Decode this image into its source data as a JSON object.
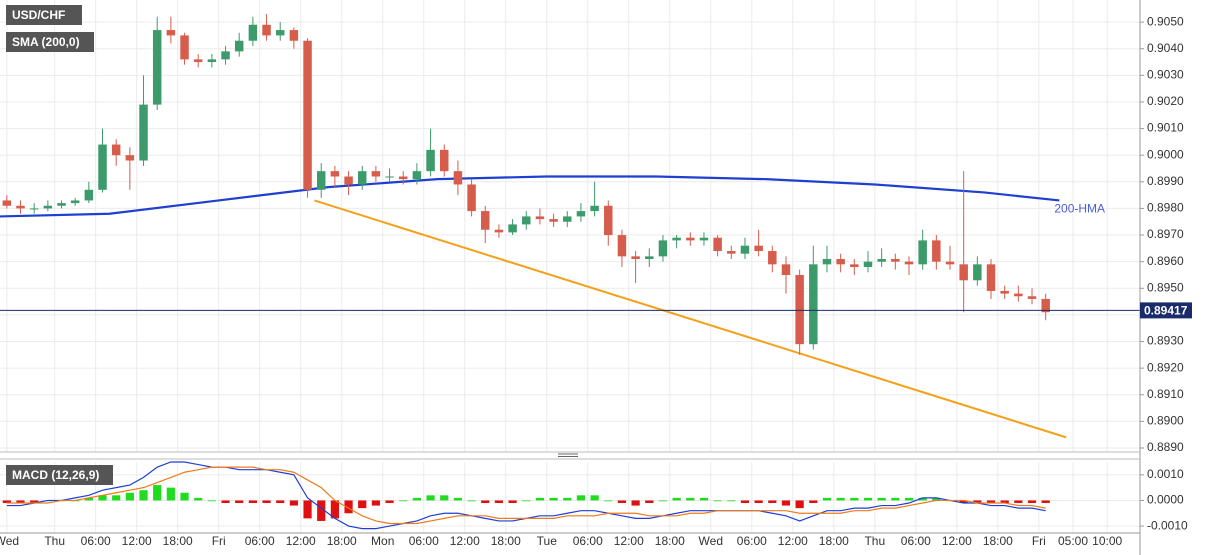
{
  "chart_data": [
    {
      "type": "candlestick",
      "title": "USD/CHF",
      "indicator": "SMA (200,0)",
      "up_color": "#3c9a6b",
      "down_color": "#d65c4c",
      "grid": true,
      "xlim": [
        -8,
        158.8
      ],
      "ylim": [
        0.88885,
        0.90583
      ],
      "yticks": [
        {
          "value": 0.889,
          "label": "0.8890"
        },
        {
          "value": 0.89,
          "label": "0.8900"
        },
        {
          "value": 0.891,
          "label": "0.8910"
        },
        {
          "value": 0.892,
          "label": "0.8920"
        },
        {
          "value": 0.893,
          "label": "0.8930"
        },
        {
          "value": 0.894,
          "label": "0.8940"
        },
        {
          "value": 0.895,
          "label": "0.8950"
        },
        {
          "value": 0.896,
          "label": "0.8960"
        },
        {
          "value": 0.897,
          "label": "0.8970"
        },
        {
          "value": 0.898,
          "label": "0.8980"
        },
        {
          "value": 0.899,
          "label": "0.8990"
        },
        {
          "value": 0.9,
          "label": "0.9000"
        },
        {
          "value": 0.901,
          "label": "0.9010"
        },
        {
          "value": 0.902,
          "label": "0.9020"
        },
        {
          "value": 0.903,
          "label": "0.9030"
        },
        {
          "value": 0.904,
          "label": "0.9040"
        },
        {
          "value": 0.905,
          "label": "0.9050"
        }
      ],
      "x": [
        -7,
        -5,
        -3,
        -1,
        1,
        3,
        5,
        7,
        9,
        11,
        13,
        15,
        17,
        19,
        21,
        23,
        25,
        27,
        29,
        31,
        33,
        35,
        37,
        39,
        41,
        43,
        45,
        47,
        49,
        51,
        53,
        55,
        57,
        59,
        61,
        63,
        65,
        67,
        69,
        71,
        73,
        75,
        77,
        79,
        81,
        83,
        85,
        87,
        89,
        91,
        93,
        95,
        97,
        99,
        101,
        103,
        105,
        107,
        109,
        111,
        113,
        115,
        117,
        119,
        121,
        123,
        125,
        127,
        129,
        131,
        133,
        135,
        137,
        139,
        141,
        143,
        145
      ],
      "ohlc": [
        [
          0.8983,
          0.8985,
          0.898,
          0.8981
        ],
        [
          0.8981,
          0.8983,
          0.8978,
          0.898
        ],
        [
          0.898,
          0.8982,
          0.8978,
          0.898
        ],
        [
          0.898,
          0.8983,
          0.8979,
          0.8981
        ],
        [
          0.8981,
          0.8983,
          0.898,
          0.8982
        ],
        [
          0.8982,
          0.8984,
          0.8981,
          0.8983
        ],
        [
          0.8983,
          0.899,
          0.8982,
          0.8987
        ],
        [
          0.8987,
          0.901,
          0.8986,
          0.9004
        ],
        [
          0.9004,
          0.9006,
          0.8996,
          0.9
        ],
        [
          0.9,
          0.9003,
          0.8987,
          0.8998
        ],
        [
          0.8998,
          0.903,
          0.8996,
          0.9019
        ],
        [
          0.9019,
          0.9052,
          0.9017,
          0.9047
        ],
        [
          0.9047,
          0.9052,
          0.9042,
          0.9045
        ],
        [
          0.9045,
          0.9046,
          0.9034,
          0.9036
        ],
        [
          0.9036,
          0.9038,
          0.9033,
          0.9035
        ],
        [
          0.9035,
          0.9038,
          0.9033,
          0.9036
        ],
        [
          0.9036,
          0.9041,
          0.9034,
          0.9039
        ],
        [
          0.9039,
          0.9046,
          0.9037,
          0.9043
        ],
        [
          0.9043,
          0.9052,
          0.9041,
          0.9049
        ],
        [
          0.9049,
          0.9053,
          0.9043,
          0.9045
        ],
        [
          0.9045,
          0.905,
          0.9043,
          0.9047
        ],
        [
          0.9047,
          0.9048,
          0.904,
          0.9043
        ],
        [
          0.9043,
          0.9044,
          0.8984,
          0.8987
        ],
        [
          0.8987,
          0.8997,
          0.8984,
          0.8994
        ],
        [
          0.8994,
          0.8996,
          0.8988,
          0.8992
        ],
        [
          0.8992,
          0.8994,
          0.8985,
          0.8989
        ],
        [
          0.8989,
          0.8996,
          0.8987,
          0.8994
        ],
        [
          0.8994,
          0.8996,
          0.899,
          0.8992
        ],
        [
          0.8992,
          0.8995,
          0.899,
          0.8992
        ],
        [
          0.8992,
          0.8994,
          0.8989,
          0.8991
        ],
        [
          0.8991,
          0.8997,
          0.8989,
          0.8994
        ],
        [
          0.8994,
          0.901,
          0.8992,
          0.9002
        ],
        [
          0.9002,
          0.9004,
          0.8992,
          0.8994
        ],
        [
          0.8994,
          0.8998,
          0.8985,
          0.8989
        ],
        [
          0.8989,
          0.8991,
          0.8977,
          0.8979
        ],
        [
          0.8979,
          0.8981,
          0.8967,
          0.8972
        ],
        [
          0.8972,
          0.8974,
          0.8969,
          0.8971
        ],
        [
          0.8971,
          0.8976,
          0.897,
          0.8974
        ],
        [
          0.8974,
          0.8979,
          0.8972,
          0.8977
        ],
        [
          0.8977,
          0.898,
          0.8974,
          0.8976
        ],
        [
          0.8976,
          0.8978,
          0.8973,
          0.8975
        ],
        [
          0.8975,
          0.8979,
          0.8973,
          0.8977
        ],
        [
          0.8977,
          0.8982,
          0.8975,
          0.8979
        ],
        [
          0.8979,
          0.899,
          0.8977,
          0.8981
        ],
        [
          0.8981,
          0.8983,
          0.8966,
          0.897
        ],
        [
          0.897,
          0.8972,
          0.8958,
          0.8962
        ],
        [
          0.8962,
          0.8964,
          0.8952,
          0.8961
        ],
        [
          0.8961,
          0.8965,
          0.8958,
          0.8962
        ],
        [
          0.8962,
          0.897,
          0.896,
          0.8968
        ],
        [
          0.8968,
          0.897,
          0.8965,
          0.8969
        ],
        [
          0.8969,
          0.8971,
          0.8966,
          0.8968
        ],
        [
          0.8968,
          0.8971,
          0.8966,
          0.8969
        ],
        [
          0.8969,
          0.897,
          0.8962,
          0.8964
        ],
        [
          0.8964,
          0.8966,
          0.8961,
          0.8963
        ],
        [
          0.8963,
          0.8969,
          0.8961,
          0.8966
        ],
        [
          0.8966,
          0.8972,
          0.8962,
          0.8964
        ],
        [
          0.8964,
          0.8966,
          0.8956,
          0.8959
        ],
        [
          0.8959,
          0.8962,
          0.8948,
          0.8955
        ],
        [
          0.8955,
          0.8957,
          0.8925,
          0.8929
        ],
        [
          0.8929,
          0.8966,
          0.8927,
          0.8959
        ],
        [
          0.8959,
          0.8966,
          0.8956,
          0.8961
        ],
        [
          0.8961,
          0.8963,
          0.8956,
          0.8959
        ],
        [
          0.8959,
          0.8961,
          0.8955,
          0.8958
        ],
        [
          0.8958,
          0.8964,
          0.8956,
          0.896
        ],
        [
          0.896,
          0.8965,
          0.8958,
          0.8961
        ],
        [
          0.8961,
          0.8963,
          0.8957,
          0.896
        ],
        [
          0.896,
          0.8962,
          0.8955,
          0.8959
        ],
        [
          0.8959,
          0.8972,
          0.8957,
          0.8968
        ],
        [
          0.8968,
          0.897,
          0.8957,
          0.896
        ],
        [
          0.896,
          0.8966,
          0.8957,
          0.8959
        ],
        [
          0.8959,
          0.8994,
          0.8941,
          0.8953
        ],
        [
          0.8953,
          0.8962,
          0.8951,
          0.8959
        ],
        [
          0.8959,
          0.8961,
          0.8946,
          0.8949
        ],
        [
          0.8949,
          0.8951,
          0.8946,
          0.8948
        ],
        [
          0.8948,
          0.8951,
          0.8945,
          0.8947
        ],
        [
          0.8947,
          0.895,
          0.8944,
          0.8946
        ],
        [
          0.8946,
          0.8948,
          0.8938,
          0.8941
        ]
      ],
      "series": [
        {
          "name": "200-HMA",
          "color": "#1e3fd0",
          "x": [
            -8,
            8,
            24,
            40,
            56,
            72,
            88,
            104,
            120,
            136,
            147
          ],
          "values": [
            0.8977,
            0.8978,
            0.8983,
            0.8988,
            0.8991,
            0.8992,
            0.8992,
            0.8991,
            0.8989,
            0.8986,
            0.8983
          ]
        }
      ],
      "trendline": {
        "color": "#f5a01a",
        "x": [
          38,
          148
        ],
        "values": [
          0.8983,
          0.8894
        ]
      },
      "last_price": 0.89417,
      "last_price_color": "#1a2b6b"
    },
    {
      "type": "macd",
      "title": "MACD (12,26,9)",
      "grid": true,
      "xlim": [
        -8,
        158.8
      ],
      "ylim": [
        -0.00127,
        0.0015
      ],
      "yticks": [
        {
          "value": 0.001,
          "label": "0.0010"
        },
        {
          "value": 0,
          "label": "0.0000"
        },
        {
          "value": -0.001,
          "label": "-0.0010"
        }
      ],
      "xticks": [
        {
          "value": -7,
          "label": "Wed"
        },
        {
          "value": 0,
          "label": "Thu"
        },
        {
          "value": 6,
          "label": "06:00"
        },
        {
          "value": 12,
          "label": "12:00"
        },
        {
          "value": 18,
          "label": "18:00"
        },
        {
          "value": 24,
          "label": "Fri"
        },
        {
          "value": 30,
          "label": "06:00"
        },
        {
          "value": 36,
          "label": "12:00"
        },
        {
          "value": 42,
          "label": "18:00"
        },
        {
          "value": 48,
          "label": "Mon"
        },
        {
          "value": 54,
          "label": "06:00"
        },
        {
          "value": 60,
          "label": "12:00"
        },
        {
          "value": 66,
          "label": "18:00"
        },
        {
          "value": 72,
          "label": "Tue"
        },
        {
          "value": 78,
          "label": "06:00"
        },
        {
          "value": 84,
          "label": "12:00"
        },
        {
          "value": 90,
          "label": "18:00"
        },
        {
          "value": 96,
          "label": "Wed"
        },
        {
          "value": 102,
          "label": "06:00"
        },
        {
          "value": 108,
          "label": "12:00"
        },
        {
          "value": 114,
          "label": "18:00"
        },
        {
          "value": 120,
          "label": "Thu"
        },
        {
          "value": 126,
          "label": "06:00"
        },
        {
          "value": 132,
          "label": "12:00"
        },
        {
          "value": 138,
          "label": "18:00"
        },
        {
          "value": 144,
          "label": "Fri"
        },
        {
          "value": 149,
          "label": "05:00"
        },
        {
          "value": 154,
          "label": "10:00"
        }
      ],
      "x": [
        -7,
        -5,
        -3,
        -1,
        1,
        3,
        5,
        7,
        9,
        11,
        13,
        15,
        17,
        19,
        21,
        23,
        25,
        27,
        29,
        31,
        33,
        35,
        37,
        39,
        41,
        43,
        45,
        47,
        49,
        51,
        53,
        55,
        57,
        59,
        61,
        63,
        65,
        67,
        69,
        71,
        73,
        75,
        77,
        79,
        81,
        83,
        85,
        87,
        89,
        91,
        93,
        95,
        97,
        99,
        101,
        103,
        105,
        107,
        109,
        111,
        113,
        115,
        117,
        119,
        121,
        123,
        125,
        127,
        129,
        131,
        133,
        135,
        137,
        139,
        141,
        143,
        145
      ],
      "histogram": {
        "up_color": "#1fdc1f",
        "down_color": "#e01010",
        "values": [
          -0.0001,
          -0.0001,
          -0.0001,
          0,
          0,
          0,
          0.0001,
          0.0002,
          0.0002,
          0.0003,
          0.0004,
          0.0006,
          0.0005,
          0.0003,
          0.0001,
          0,
          -0.0001,
          -0.0001,
          -0.0001,
          -0.0001,
          -0.0001,
          -0.0002,
          -0.0007,
          -0.0008,
          -0.0007,
          -0.0005,
          -0.0003,
          -0.0002,
          -0.0001,
          0,
          0.0001,
          0.0002,
          0.0002,
          0.0001,
          0,
          -0.0001,
          -0.0001,
          -0.0001,
          0,
          0.0001,
          0.0001,
          0.0001,
          0.0002,
          0.0002,
          0,
          -0.0001,
          -0.0002,
          -0.0001,
          0,
          0.0001,
          0.0001,
          0.0001,
          0,
          0,
          -0.0001,
          -0.0001,
          -0.0001,
          -0.0002,
          -0.0003,
          -0.0001,
          0.0001,
          0.0001,
          0.0001,
          0.0001,
          0.0001,
          0.0001,
          0.0001,
          0.0001,
          0.0001,
          0,
          -0.0001,
          -0.0001,
          -0.0001,
          -0.0001,
          -0.0001,
          -0.0001,
          -0.0001
        ]
      },
      "series": [
        {
          "color": "#1f3fd6",
          "values": [
            -0.0002,
            -0.0002,
            -0.0001,
            0,
            0,
            0.0001,
            0.0002,
            0.0004,
            0.0005,
            0.0006,
            0.0009,
            0.0013,
            0.0015,
            0.0015,
            0.0014,
            0.0013,
            0.0013,
            0.0012,
            0.0012,
            0.0012,
            0.0011,
            0.001,
            0.0001,
            -0.0003,
            -0.0007,
            -0.001,
            -0.0011,
            -0.0011,
            -0.001,
            -0.0009,
            -0.0008,
            -0.0006,
            -0.0005,
            -0.0005,
            -0.0006,
            -0.0007,
            -0.0008,
            -0.0008,
            -0.0007,
            -0.0006,
            -0.0006,
            -0.0005,
            -0.0004,
            -0.0004,
            -0.0005,
            -0.0006,
            -0.0007,
            -0.0007,
            -0.0006,
            -0.0005,
            -0.0004,
            -0.0004,
            -0.0004,
            -0.0004,
            -0.0004,
            -0.0004,
            -0.0005,
            -0.0006,
            -0.0008,
            -0.0006,
            -0.0004,
            -0.0004,
            -0.0003,
            -0.0003,
            -0.0002,
            -0.0002,
            -0.0001,
            0.0001,
            0.0001,
            0,
            -0.0001,
            -0.0001,
            -0.0002,
            -0.0002,
            -0.0003,
            -0.0003,
            -0.0004
          ]
        },
        {
          "color": "#f07a1a",
          "values": [
            -0.0001,
            -0.0001,
            -0.0001,
            -0.0001,
            0,
            0,
            0.0001,
            0.0002,
            0.0003,
            0.0004,
            0.0005,
            0.0007,
            0.0009,
            0.0011,
            0.0012,
            0.0013,
            0.0013,
            0.0013,
            0.0013,
            0.0012,
            0.0012,
            0.0011,
            0.0008,
            0.0005,
            0,
            -0.0003,
            -0.0006,
            -0.0008,
            -0.0009,
            -0.0009,
            -0.0009,
            -0.0008,
            -0.0007,
            -0.0006,
            -0.0006,
            -0.0006,
            -0.0007,
            -0.0007,
            -0.0007,
            -0.0007,
            -0.0007,
            -0.0006,
            -0.0006,
            -0.0006,
            -0.0005,
            -0.0005,
            -0.0005,
            -0.0006,
            -0.0006,
            -0.0006,
            -0.0005,
            -0.0005,
            -0.0004,
            -0.0004,
            -0.0004,
            -0.0004,
            -0.0004,
            -0.0004,
            -0.0005,
            -0.0005,
            -0.0005,
            -0.0005,
            -0.0004,
            -0.0004,
            -0.0003,
            -0.0003,
            -0.0002,
            -0.0001,
            0,
            0,
            0,
            -0.0001,
            -0.0001,
            -0.0001,
            -0.0002,
            -0.0002,
            -0.0003
          ]
        }
      ]
    }
  ]
}
